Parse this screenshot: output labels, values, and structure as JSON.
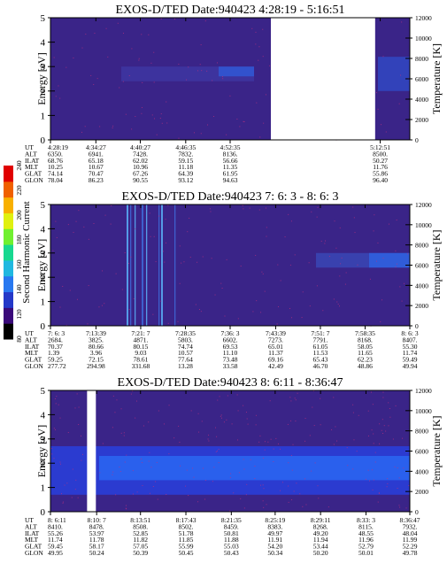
{
  "figure": {
    "colorbar": {
      "label": "Second Harmonic Current",
      "ticks": [
        "80",
        "120",
        "140",
        "160",
        "180",
        "200",
        "220",
        "240"
      ],
      "colors": [
        "#000000",
        "#3a0a7a",
        "#2438c8",
        "#2878f0",
        "#20b8e0",
        "#18d890",
        "#70f030",
        "#e0f010",
        "#f8b000",
        "#f06000",
        "#e00000"
      ]
    },
    "colors": {
      "background": "#3a2488",
      "band_low": "#2a3ed8",
      "band_mid": "#2a62ee",
      "noise": "#c03080",
      "spike": "#5ab0f8",
      "gap": "#ffffff"
    }
  },
  "chart_data": [
    {
      "type": "heatmap",
      "title": "EXOS-D/TED   Date:940423  4:28:19 - 5:16:51",
      "ylabel": "Energy [eV]",
      "y2label": "Temperature [K]",
      "ylim": [
        0,
        5
      ],
      "y2lim": [
        0,
        12000
      ],
      "y_ticks": [
        "0",
        "1",
        "2",
        "3",
        "4",
        "5"
      ],
      "y2_ticks": [
        "0",
        "2000",
        "4000",
        "6000",
        "8000",
        "10000",
        "12000"
      ],
      "time_range": [
        "4:28:19",
        "5:16:51"
      ],
      "data_gaps": [
        [
          "4:58:05",
          "5:12:10"
        ]
      ],
      "ephemeris": {
        "row_labels": [
          "UT",
          "ALT",
          "ILAT",
          "MLT",
          "GLAT",
          "GLON"
        ],
        "columns": [
          {
            "UT": "4:28:19",
            "ALT": "6350.",
            "ILAT": "68.76",
            "MLT": "10.25",
            "GLAT": "74.14",
            "GLON": "78.04"
          },
          {
            "UT": "4:34:27",
            "ALT": "6941.",
            "ILAT": "65.18",
            "MLT": "10.67",
            "GLAT": "70.47",
            "GLON": "86.23"
          },
          {
            "UT": "4:40:27",
            "ALT": "7428.",
            "ILAT": "62.02",
            "MLT": "10.96",
            "GLAT": "67.26",
            "GLON": "90.55"
          },
          {
            "UT": "4:46:35",
            "ALT": "7832.",
            "ILAT": "59.15",
            "MLT": "11.18",
            "GLAT": "64.39",
            "GLON": "93.12"
          },
          {
            "UT": "4:52:35",
            "ALT": "8136.",
            "ILAT": "56.66",
            "MLT": "11.35",
            "GLAT": "61.95",
            "GLON": "94.63"
          },
          {
            "UT": "5:12:51",
            "ALT": "8500.",
            "ILAT": "50.27",
            "MLT": "11.76",
            "GLAT": "55.86",
            "GLON": "96.40"
          }
        ]
      }
    },
    {
      "type": "heatmap",
      "title": "EXOS-D/TED   Date:940423  7: 6: 3 - 8: 6: 3",
      "ylabel": "Energy [eV]",
      "y2label": "Temperature [K]",
      "ylim": [
        0,
        5
      ],
      "y2lim": [
        0,
        12000
      ],
      "y_ticks": [
        "0",
        "1",
        "2",
        "3",
        "4",
        "5"
      ],
      "y2_ticks": [
        "0",
        "2000",
        "4000",
        "6000",
        "8000",
        "10000",
        "12000"
      ],
      "time_range": [
        "7:06:03",
        "8:06:03"
      ],
      "data_gaps": [],
      "ephemeris": {
        "row_labels": [
          "UT",
          "ALT",
          "ILAT",
          "MLT",
          "GLAT",
          "GLON"
        ],
        "columns": [
          {
            "UT": "7: 6: 3",
            "ALT": "2684.",
            "ILAT": "70.37",
            "MLT": "1.39",
            "GLAT": "59.25",
            "GLON": "277.72"
          },
          {
            "UT": "7:13:39",
            "ALT": "3825.",
            "ILAT": "80.66",
            "MLT": "3.96",
            "GLAT": "72.15",
            "GLON": "294.98"
          },
          {
            "UT": "7:21: 7",
            "ALT": "4871.",
            "ILAT": "80.15",
            "MLT": "9.03",
            "GLAT": "78.61",
            "GLON": "331.68"
          },
          {
            "UT": "7:28:35",
            "ALT": "5803.",
            "ILAT": "74.74",
            "MLT": "10.57",
            "GLAT": "77.64",
            "GLON": "13.28"
          },
          {
            "UT": "7:36: 3",
            "ALT": "6602.",
            "ILAT": "69.53",
            "MLT": "11.10",
            "GLAT": "73.48",
            "GLON": "33.58"
          },
          {
            "UT": "7:43:39",
            "ALT": "7273.",
            "ILAT": "65.01",
            "MLT": "11.37",
            "GLAT": "69.16",
            "GLON": "42.49"
          },
          {
            "UT": "7:51: 7",
            "ALT": "7791.",
            "ILAT": "61.05",
            "MLT": "11.53",
            "GLAT": "65.43",
            "GLON": "46.70"
          },
          {
            "UT": "7:58:35",
            "ALT": "8168.",
            "ILAT": "58.05",
            "MLT": "11.65",
            "GLAT": "62.23",
            "GLON": "48.86"
          },
          {
            "UT": "8: 6: 3",
            "ALT": "8407.",
            "ILAT": "55.30",
            "MLT": "11.74",
            "GLAT": "59.49",
            "GLON": "49.94"
          }
        ]
      }
    },
    {
      "type": "heatmap",
      "title": "EXOS-D/TED   Date:940423  8: 6:11 - 8:36:47",
      "ylabel": "Energy [eV]",
      "y2label": "Temperature [K]",
      "ylim": [
        0,
        5
      ],
      "y2lim": [
        0,
        12000
      ],
      "y_ticks": [
        "0",
        "1",
        "2",
        "3",
        "4",
        "5"
      ],
      "y2_ticks": [
        "0",
        "2000",
        "4000",
        "6000",
        "8000",
        "10000",
        "12000"
      ],
      "time_range": [
        "8:06:11",
        "8:36:47"
      ],
      "data_gaps": [
        [
          "8:09:18",
          "8:10:03"
        ]
      ],
      "ephemeris": {
        "row_labels": [
          "UT",
          "ALT",
          "ILAT",
          "MLT",
          "GLAT",
          "GLON"
        ],
        "columns": [
          {
            "UT": "8: 6:11",
            "ALT": "8410.",
            "ILAT": "55.26",
            "MLT": "11.74",
            "GLAT": "59.45",
            "GLON": "49.95"
          },
          {
            "UT": "8:10: 7",
            "ALT": "8478.",
            "ILAT": "53.97",
            "MLT": "11.78",
            "GLAT": "58.17",
            "GLON": "50.24"
          },
          {
            "UT": "8:13:51",
            "ALT": "8508.",
            "ILAT": "52.85",
            "MLT": "11.82",
            "GLAT": "57.05",
            "GLON": "50.39"
          },
          {
            "UT": "8:17:43",
            "ALT": "8502.",
            "ILAT": "51.78",
            "MLT": "11.85",
            "GLAT": "55.99",
            "GLON": "50.45"
          },
          {
            "UT": "8:21:35",
            "ALT": "8459.",
            "ILAT": "50.81",
            "MLT": "11.88",
            "GLAT": "55.03",
            "GLON": "50.43"
          },
          {
            "UT": "8:25:19",
            "ALT": "8383.",
            "ILAT": "49.97",
            "MLT": "11.91",
            "GLAT": "54.20",
            "GLON": "50.34"
          },
          {
            "UT": "8:29:11",
            "ALT": "8268.",
            "ILAT": "49.20",
            "MLT": "11.94",
            "GLAT": "53.44",
            "GLON": "50.20"
          },
          {
            "UT": "8:33: 3",
            "ALT": "8115.",
            "ILAT": "48.55",
            "MLT": "11.96",
            "GLAT": "52.79",
            "GLON": "50.01"
          },
          {
            "UT": "8:36:47",
            "ALT": "7932.",
            "ILAT": "48.04",
            "MLT": "11.99",
            "GLAT": "52.29",
            "GLON": "49.78"
          }
        ]
      }
    }
  ]
}
